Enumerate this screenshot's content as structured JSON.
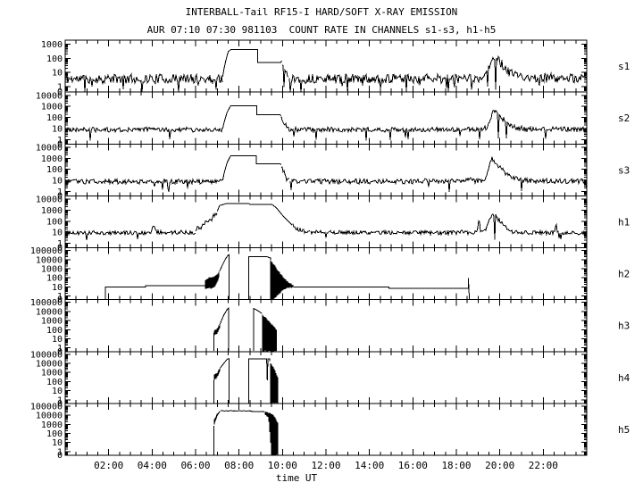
{
  "title": "INTERBALL-Tail RF15-I HARD/SOFT X-RAY EMISSION",
  "subtitle": "AUR 07:10 07:30 981103  COUNT RATE IN CHANNELS s1-s3, h1-h5",
  "colors": {
    "foreground": "#000000",
    "background": "#ffffff"
  },
  "chart_data": {
    "type": "line",
    "xlabel": "time UT",
    "x_range_hours": [
      0,
      24
    ],
    "x_tick_hours": [
      2,
      4,
      6,
      8,
      10,
      12,
      14,
      16,
      18,
      20,
      22
    ],
    "x_tick_labels": [
      "02:00",
      "04:00",
      "06:00",
      "08:00",
      "10:00",
      "12:00",
      "14:00",
      "16:00",
      "18:00",
      "20:00",
      "22:00"
    ],
    "x_minor_tick_hours": 0.5,
    "y_scale": "log",
    "grid": false,
    "legend_position": "right-of-each-panel",
    "panels": [
      {
        "name": "s1",
        "labels": [
          "1000",
          "100",
          "10",
          "1"
        ],
        "zero_label": "0",
        "lmin": -0.4,
        "lmax": 3.3,
        "segments": [
          {
            "type": "noise",
            "seed": 11,
            "t": [
              0,
              7.25
            ],
            "v": [
              3.5,
              3.5
            ],
            "amp": 0.34,
            "sp": 0.05,
            "sv": 0.7
          },
          {
            "type": "line",
            "t": [
              7.25,
              7.3,
              7.38,
              7.5,
              7.62,
              8.85,
              8.85,
              9.93,
              9.96
            ],
            "v": [
              5,
              15,
              60,
              300,
              420,
              420,
              52,
              52,
              70
            ]
          },
          {
            "type": "noise",
            "seed": 12,
            "t": [
              9.96,
              10.05,
              10.15,
              10.3
            ],
            "v": [
              60,
              22,
              8,
              3.5
            ],
            "amp": 0.3,
            "sp": 0.03,
            "sv": 0.7
          },
          {
            "type": "noise",
            "seed": 13,
            "t": [
              10.3,
              19.1,
              19.35,
              19.5,
              19.62,
              19.72,
              19.85,
              20.05,
              20.3,
              20.6,
              21,
              24
            ],
            "v": [
              3.5,
              3.5,
              6,
              30,
              110,
              150,
              100,
              45,
              15,
              7,
              4.5,
              3.5
            ],
            "amp": 0.34,
            "sp": 0.05,
            "sv": 0.7
          }
        ]
      },
      {
        "name": "s2",
        "labels": [
          "10000",
          "1000",
          "100",
          "10",
          "1"
        ],
        "zero_label": "0",
        "lmin": -0.4,
        "lmax": 4.3,
        "segments": [
          {
            "type": "noise",
            "seed": 21,
            "t": [
              0,
              7.25
            ],
            "v": [
              8,
              8
            ],
            "amp": 0.22,
            "sp": 0.025,
            "sv": 1.4
          },
          {
            "type": "line",
            "t": [
              7.25,
              7.32,
              7.45,
              7.6,
              7.63,
              8.82,
              8.82,
              9.9,
              9.93
            ],
            "v": [
              10,
              40,
              300,
              1000,
              1150,
              1150,
              170,
              170,
              140
            ]
          },
          {
            "type": "noise",
            "seed": 22,
            "t": [
              9.93,
              10.05,
              10.2,
              10.35
            ],
            "v": [
              120,
              40,
              12,
              8
            ],
            "amp": 0.25,
            "sp": 0,
            "sv": 1
          },
          {
            "type": "noise",
            "seed": 23,
            "t": [
              10.35,
              19.15,
              19.4,
              19.55,
              19.65,
              19.75,
              19.9,
              20.1,
              20.35,
              20.7,
              21.1,
              24
            ],
            "v": [
              8,
              8,
              13,
              70,
              240,
              300,
              210,
              80,
              30,
              13,
              9,
              8
            ],
            "amp": 0.22,
            "sp": 0.02,
            "sv": 1.4
          }
        ]
      },
      {
        "name": "s3",
        "labels": [
          "10000",
          "1000",
          "100",
          "10",
          "1"
        ],
        "zero_label": "0",
        "lmin": -0.4,
        "lmax": 4.3,
        "segments": [
          {
            "type": "noise",
            "seed": 31,
            "t": [
              0,
              7.25
            ],
            "v": [
              8,
              8
            ],
            "amp": 0.22,
            "sp": 0.02,
            "sv": 1.4
          },
          {
            "type": "line",
            "t": [
              7.25,
              7.32,
              7.45,
              7.6,
              7.63,
              8.8,
              8.8,
              9.9,
              9.93
            ],
            "v": [
              10,
              50,
              400,
              1500,
              1750,
              1750,
              330,
              330,
              260
            ]
          },
          {
            "type": "noise",
            "seed": 32,
            "t": [
              9.93,
              10.05,
              10.2,
              10.35
            ],
            "v": [
              200,
              60,
              15,
              8
            ],
            "amp": 0.25,
            "sp": 0,
            "sv": 1
          },
          {
            "type": "noise",
            "seed": 33,
            "t": [
              10.35,
              16.4,
              16.75,
              17.1,
              18.3,
              18.55,
              18.8,
              19.25,
              19.42,
              19.52,
              19.62,
              19.75,
              19.95,
              20.2,
              20.5,
              20.9,
              21.4,
              24
            ],
            "v": [
              8,
              8,
              11,
              8.5,
              8.5,
              13,
              9,
              10,
              40,
              300,
              900,
              600,
              200,
              60,
              20,
              11,
              9,
              8
            ],
            "amp": 0.22,
            "sp": 0.02,
            "sv": 1.4
          }
        ]
      },
      {
        "name": "h1",
        "labels": [
          "10000",
          "1000",
          "100",
          "10",
          "1"
        ],
        "zero_label": "0",
        "lmin": -0.4,
        "lmax": 4.3,
        "segments": [
          {
            "type": "noise",
            "seed": 41,
            "t": [
              0,
              3.95,
              4.03,
              4.12,
              4.2,
              6.0
            ],
            "v": [
              9,
              9,
              24,
              26,
              10,
              10
            ],
            "amp": 0.18,
            "sp": 0.01,
            "sv": 2
          },
          {
            "type": "noise",
            "seed": 42,
            "t": [
              6.0,
              6.1,
              6.25,
              6.4,
              6.55,
              6.7,
              6.85,
              7.0
            ],
            "v": [
              12,
              28,
              24,
              60,
              110,
              130,
              380,
              700
            ],
            "amp": 0.2,
            "sp": 0,
            "sv": 1
          },
          {
            "type": "line",
            "t": [
              7.0,
              7.1,
              7.25,
              7.4,
              7.5,
              8.45,
              8.5,
              9.5,
              9.55,
              9.7,
              9.85,
              10.0,
              10.2,
              10.45
            ],
            "v": [
              800,
              2600,
              3200,
              3900,
              4000,
              4000,
              3400,
              3400,
              2900,
              1800,
              800,
              350,
              130,
              45
            ]
          },
          {
            "type": "noise",
            "seed": 43,
            "t": [
              10.45,
              10.7,
              11.0,
              11.3
            ],
            "v": [
              45,
              20,
              12,
              10
            ],
            "amp": 0.18,
            "sp": 0,
            "sv": 1
          },
          {
            "type": "noise",
            "seed": 44,
            "t": [
              11.3,
              18.15,
              18.3,
              18.45,
              18.95,
              19.0,
              19.05,
              19.1,
              19.3,
              19.45,
              19.55,
              19.65,
              19.78,
              19.95,
              20.15,
              20.4,
              20.7,
              22.5,
              22.58,
              22.66,
              24
            ],
            "v": [
              10,
              9,
              14,
              9,
              9,
              60,
              230,
              12,
              11,
              40,
              200,
              480,
              380,
              130,
              45,
              16,
              10,
              9,
              55,
              9,
              9
            ],
            "amp": 0.18,
            "sp": 0.008,
            "sv": 2
          }
        ]
      },
      {
        "name": "h2",
        "labels": [
          "100000",
          "10000",
          "1000",
          "100",
          "10",
          "1"
        ],
        "zero_label": "0",
        "lmin": -0.4,
        "lmax": 5.3,
        "segments": [
          {
            "type": "line",
            "t": [
              1.85,
              1.85,
              3.7,
              3.7,
              6.45
            ],
            "v": [
              0.45,
              10,
              10,
              14,
              14
            ]
          },
          {
            "type": "band",
            "seed": 51,
            "t": [
              6.45,
              6.65,
              6.85,
              7.0,
              7.1
            ],
            "top": [
              60,
              110,
              130,
              260,
              500
            ],
            "bot": [
              7,
              7,
              8,
              30,
              200
            ]
          },
          {
            "type": "line",
            "t": [
              7.1,
              7.25,
              7.4,
              7.5,
              7.55,
              7.55
            ],
            "v": [
              500,
              3000,
              15000,
              30000,
              34000,
              0.45
            ]
          },
          {
            "type": "line",
            "t": [
              8.45,
              8.45,
              9.3,
              9.45,
              9.45
            ],
            "v": [
              0.45,
              20000,
              20000,
              15000,
              8000
            ]
          },
          {
            "type": "band",
            "seed": 52,
            "t": [
              9.45,
              9.6,
              9.75,
              9.95,
              10.15,
              10.35,
              10.5
            ],
            "top": [
              8000,
              3000,
              900,
              200,
              60,
              25,
              14
            ],
            "bot": [
              0.45,
              0.45,
              1,
              3,
              7,
              9,
              10
            ]
          },
          {
            "type": "line",
            "t": [
              10.5,
              14.9,
              14.9,
              18.55,
              18.55,
              18.6
            ],
            "v": [
              10,
              10,
              7,
              7,
              95,
              0.45
            ]
          }
        ]
      },
      {
        "name": "h3",
        "labels": [
          "100000",
          "10000",
          "1000",
          "100",
          "10",
          "1"
        ],
        "zero_label": "0",
        "lmin": -0.4,
        "lmax": 5.3,
        "segments": [
          {
            "type": "line",
            "t": [
              6.85,
              6.85
            ],
            "v": [
              0.45,
              45
            ]
          },
          {
            "type": "band",
            "seed": 61,
            "t": [
              6.85,
              7.0,
              7.12
            ],
            "top": [
              75,
              140,
              400
            ],
            "bot": [
              24,
              38,
              180
            ]
          },
          {
            "type": "line",
            "t": [
              7.12,
              7.3,
              7.45,
              7.52,
              7.52
            ],
            "v": [
              400,
              4000,
              16000,
              23000,
              0.45
            ]
          },
          {
            "type": "line",
            "t": [
              8.67,
              8.67,
              8.8,
              8.95,
              9.05
            ],
            "v": [
              0.45,
              21000,
              15000,
              9000,
              6000
            ]
          },
          {
            "type": "band",
            "seed": 62,
            "t": [
              9.05,
              9.2,
              9.35,
              9.5,
              9.65,
              9.72
            ],
            "top": [
              5000,
              2500,
              1000,
              400,
              150,
              90
            ],
            "bot": [
              0.45,
              0.45,
              0.45,
              0.45,
              0.45,
              0.45
            ]
          },
          {
            "type": "line",
            "t": [
              9.72,
              9.72
            ],
            "v": [
              90,
              0.45
            ]
          }
        ]
      },
      {
        "name": "h4",
        "labels": [
          "100000",
          "10000",
          "1000",
          "100",
          "10",
          "1"
        ],
        "zero_label": "0",
        "lmin": -0.4,
        "lmax": 5.3,
        "segments": [
          {
            "type": "line",
            "t": [
              6.85,
              6.85
            ],
            "v": [
              0.45,
              140
            ]
          },
          {
            "type": "band",
            "seed": 71,
            "t": [
              6.85,
              7.0,
              7.12
            ],
            "top": [
              500,
              1000,
              2800
            ],
            "bot": [
              140,
              300,
              1500
            ]
          },
          {
            "type": "line",
            "t": [
              7.12,
              7.3,
              7.45,
              7.55,
              7.55
            ],
            "v": [
              2800,
              10000,
              28000,
              33000,
              0.45
            ]
          },
          {
            "type": "line",
            "t": [
              8.45,
              8.45,
              9.27,
              9.3,
              9.33,
              9.42,
              9.42
            ],
            "v": [
              0.45,
              30000,
              30000,
              130,
              30000,
              30000,
              17000
            ]
          },
          {
            "type": "band",
            "seed": 72,
            "t": [
              9.42,
              9.55,
              9.68,
              9.78
            ],
            "top": [
              15000,
              5000,
              1200,
              300
            ],
            "bot": [
              0.45,
              0.45,
              0.45,
              0.45
            ]
          },
          {
            "type": "line",
            "t": [
              9.78,
              9.78
            ],
            "v": [
              300,
              0.45
            ]
          }
        ]
      },
      {
        "name": "h5",
        "labels": [
          "100000",
          "10000",
          "1000",
          "100",
          "10",
          "1"
        ],
        "zero_label": "0",
        "lmin": -0.4,
        "lmax": 5.3,
        "segments": [
          {
            "type": "line",
            "t": [
              6.85,
              6.85
            ],
            "v": [
              0.45,
              700
            ]
          },
          {
            "type": "band",
            "seed": 81,
            "t": [
              6.85,
              6.95,
              7.05,
              7.15
            ],
            "top": [
              3000,
              9000,
              22000,
              32000
            ],
            "bot": [
              800,
              4500,
              16000,
              27000
            ]
          },
          {
            "type": "noise",
            "seed": 82,
            "t": [
              7.15,
              8.55,
              8.6,
              9.2
            ],
            "v": [
              30000,
              30000,
              26000,
              25000
            ],
            "amp": 0.035,
            "sp": 0,
            "sv": 1
          },
          {
            "type": "band",
            "seed": 83,
            "t": [
              9.2,
              9.35,
              9.5,
              9.6,
              9.7,
              9.78
            ],
            "top": [
              24000,
              20000,
              14000,
              9000,
              4000,
              1500
            ],
            "bot": [
              12000,
              6000,
              0.45,
              0.45,
              0.45,
              0.45
            ]
          },
          {
            "type": "line",
            "t": [
              9.78,
              9.78
            ],
            "v": [
              1500,
              0.45
            ]
          }
        ]
      }
    ]
  },
  "xlabel": "time UT"
}
